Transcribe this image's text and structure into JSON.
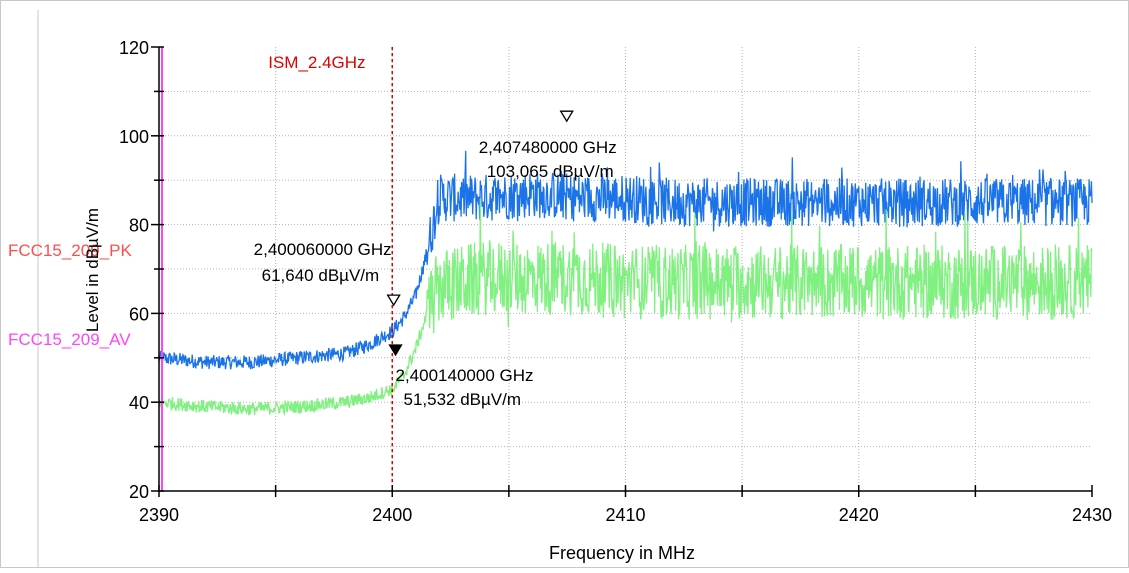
{
  "chart_data": {
    "type": "line",
    "xlabel": "Frequency in MHz",
    "ylabel": "Level in dBµV/m",
    "xlim": [
      2390,
      2430
    ],
    "ylim": [
      20,
      120
    ],
    "x_ticks": [
      2390,
      2400,
      2410,
      2420,
      2430
    ],
    "y_ticks": [
      20,
      40,
      60,
      80,
      100,
      120
    ],
    "grid": true,
    "colors": {
      "peak": "#1a73e8",
      "average": "#80f080",
      "limit_pk": "#ff4d4d",
      "limit_av": "#ff44ff",
      "marker_line": "#e00000"
    },
    "limit_lines": [
      {
        "label": "FCC15_209_PK",
        "level": 74,
        "color": "#ff4d4d"
      },
      {
        "label": "FCC15_209_AV",
        "level": 54,
        "color": "#ff44ff"
      }
    ],
    "vertical_markers": [
      {
        "label": "ISM_2.4GHz",
        "x": 2400
      }
    ],
    "series": [
      {
        "key": "peak",
        "x": [
          2390,
          2392,
          2394,
          2396,
          2398,
          2399,
          2400,
          2400.5,
          2401,
          2401.5,
          2402,
          2404,
          2406,
          2408,
          2410,
          2412,
          2414,
          2416,
          2418,
          2420,
          2422,
          2424,
          2426,
          2428,
          2430
        ],
        "values": [
          50,
          49,
          49,
          50,
          51,
          53,
          56,
          59,
          64,
          74,
          86,
          86,
          87,
          86,
          86,
          85,
          85,
          85,
          85,
          85,
          85,
          85,
          85,
          85,
          85
        ]
      },
      {
        "key": "average",
        "x": [
          2390,
          2392,
          2394,
          2396,
          2398,
          2399,
          2400,
          2400.5,
          2401,
          2401.5,
          2402,
          2404,
          2406,
          2408,
          2410,
          2412,
          2414,
          2416,
          2418,
          2420,
          2422,
          2424,
          2426,
          2428,
          2430
        ],
        "values": [
          40,
          39,
          38.5,
          39,
          40,
          41,
          43,
          46,
          52,
          60,
          66,
          68,
          68,
          68,
          67,
          67,
          67,
          67,
          67,
          67,
          67,
          67,
          67,
          67,
          67
        ]
      }
    ],
    "markers": [
      {
        "name": "marker-peak-max",
        "x": 2407.48,
        "y": 103.065,
        "style": "open",
        "line1": "2,407480000 GHz",
        "line2": "103,065 dBµV/m"
      },
      {
        "name": "marker-peak-edge",
        "x": 2400.06,
        "y": 61.64,
        "style": "open",
        "line1": "2,400060000 GHz",
        "line2": "61,640 dBµV/m"
      },
      {
        "name": "marker-avg-edge",
        "x": 2400.14,
        "y": 51.532,
        "style": "filled",
        "line1": "2,400140000 GHz",
        "line2": "51,532 dBµV/m"
      }
    ]
  }
}
